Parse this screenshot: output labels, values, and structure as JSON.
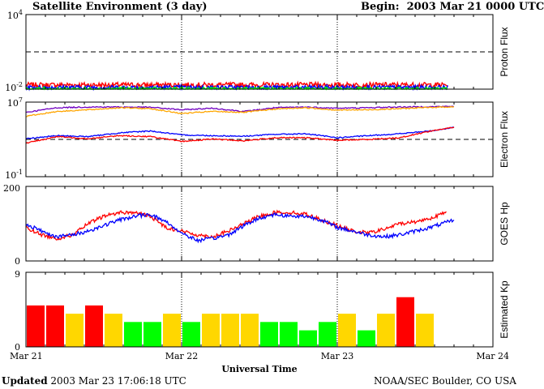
{
  "header": {
    "title": "Satellite Environment (3 day)",
    "begin_label": "Begin:",
    "begin_value": "2003 Mar 21 0000 UTC"
  },
  "footer": {
    "updated_label": "Updated",
    "updated_value": "2003 Mar 23 17:06:18 UTC",
    "credit": "NOAA/SEC Boulder, CO USA"
  },
  "colors": {
    "red": "#ff0000",
    "blue": "#0000ff",
    "green": "#00ff00",
    "orange": "#ffa500",
    "purple": "#7000c0",
    "kp_red": "#ff0000",
    "kp_yellow": "#ffd700",
    "kp_green": "#00ff00"
  },
  "chart_data": [
    {
      "id": "proton",
      "type": "line",
      "ylabel": "Proton Flux",
      "yscale": "log",
      "ylim": [
        0.01,
        10000
      ],
      "yticks": [
        {
          "base": "10",
          "exp": "4"
        },
        {
          "base": "10",
          "exp": "-2"
        }
      ],
      "threshold": 10,
      "x_range_days": [
        0,
        3
      ],
      "data_end_day": 2.71,
      "series": [
        {
          "color": "#ff0000",
          "level": 0.022,
          "jitter": 0.2
        },
        {
          "color": "#0000ff",
          "level": 0.014,
          "jitter": 0.16
        },
        {
          "color": "#00ff00",
          "level": 0.01,
          "jitter": 0.16
        }
      ]
    },
    {
      "id": "electron",
      "type": "line",
      "ylabel": "Electron Flux",
      "yscale": "log",
      "ylim": [
        0.1,
        10000000
      ],
      "yticks": [
        {
          "base": "10",
          "exp": "7"
        },
        {
          "base": "10",
          "exp": "-1"
        }
      ],
      "threshold": 1000,
      "x_range_days": [
        0,
        3
      ],
      "data_end_day": 2.75,
      "series": [
        {
          "color": "#7000c0",
          "x": [
            0,
            0.2,
            0.4,
            0.6,
            0.8,
            1.0,
            1.2,
            1.4,
            1.6,
            1.8,
            2.0,
            2.2,
            2.4,
            2.6,
            2.75
          ],
          "y": [
            800000,
            2500000,
            3000000,
            3000000,
            2800000,
            1500000,
            2200000,
            1000000,
            2500000,
            3000000,
            2200000,
            2500000,
            3000000,
            3200000,
            3500000
          ]
        },
        {
          "color": "#ffa500",
          "x": [
            0,
            0.2,
            0.4,
            0.6,
            0.8,
            1.0,
            1.2,
            1.4,
            1.6,
            1.8,
            2.0,
            2.2,
            2.4,
            2.6,
            2.75
          ],
          "y": [
            300000,
            1000000,
            1500000,
            2500000,
            2000000,
            600000,
            1000000,
            800000,
            1800000,
            2500000,
            1400000,
            1500000,
            2000000,
            2700000,
            3200000
          ]
        },
        {
          "color": "#0000ff",
          "x": [
            0,
            0.2,
            0.4,
            0.6,
            0.8,
            1.0,
            1.2,
            1.4,
            1.6,
            1.8,
            2.0,
            2.2,
            2.4,
            2.6,
            2.75
          ],
          "y": [
            1200,
            2500,
            2000,
            5000,
            8000,
            3000,
            2500,
            2200,
            3500,
            4000,
            1500,
            2500,
            4000,
            8000,
            20000
          ]
        },
        {
          "color": "#ff0000",
          "x": [
            0,
            0.2,
            0.4,
            0.6,
            0.8,
            1.0,
            1.2,
            1.4,
            1.6,
            1.8,
            2.0,
            2.2,
            2.4,
            2.6,
            2.75
          ],
          "y": [
            400,
            2000,
            1200,
            2500,
            2000,
            600,
            1100,
            700,
            1500,
            1500,
            800,
            1000,
            1500,
            8000,
            20000
          ]
        }
      ]
    },
    {
      "id": "hp",
      "type": "line",
      "ylabel": "GOES Hp",
      "ylim": [
        0,
        200
      ],
      "yticks": [
        200,
        0
      ],
      "x_range_days": [
        0,
        3
      ],
      "data_end_day": 2.75,
      "series": [
        {
          "color": "#ff0000",
          "x": [
            0,
            0.1,
            0.2,
            0.3,
            0.4,
            0.5,
            0.6,
            0.7,
            0.8,
            0.9,
            1.0,
            1.1,
            1.2,
            1.3,
            1.4,
            1.5,
            1.6,
            1.7,
            1.8,
            1.9,
            2.0,
            2.1,
            2.2,
            2.3,
            2.4,
            2.5,
            2.6,
            2.7
          ],
          "y": [
            90,
            70,
            60,
            70,
            100,
            120,
            130,
            130,
            120,
            90,
            80,
            70,
            65,
            80,
            100,
            120,
            130,
            130,
            125,
            110,
            95,
            80,
            75,
            85,
            100,
            105,
            115,
            130
          ]
        },
        {
          "color": "#0000ff",
          "x": [
            0,
            0.1,
            0.2,
            0.3,
            0.4,
            0.5,
            0.6,
            0.7,
            0.8,
            0.9,
            1.0,
            1.1,
            1.2,
            1.3,
            1.4,
            1.5,
            1.6,
            1.7,
            1.8,
            1.9,
            2.0,
            2.1,
            2.2,
            2.3,
            2.4,
            2.5,
            2.6,
            2.75
          ],
          "y": [
            100,
            80,
            65,
            70,
            80,
            95,
            110,
            120,
            125,
            105,
            75,
            55,
            60,
            70,
            95,
            115,
            125,
            120,
            120,
            110,
            90,
            80,
            70,
            65,
            70,
            80,
            90,
            110
          ]
        }
      ]
    },
    {
      "id": "kp",
      "type": "bar",
      "ylabel": "Estimated Kp",
      "ylim": [
        0,
        9
      ],
      "yticks": [
        9,
        0
      ],
      "x_range_days": [
        0,
        3
      ],
      "values": [
        5,
        5,
        4,
        5,
        4,
        3,
        3,
        4,
        3,
        4,
        4,
        4,
        3,
        3,
        2,
        3,
        4,
        2,
        4,
        6,
        4
      ],
      "xlabel": "Universal Time",
      "xticks": [
        "Mar 21",
        "Mar 22",
        "Mar 23",
        "Mar 24"
      ]
    }
  ]
}
